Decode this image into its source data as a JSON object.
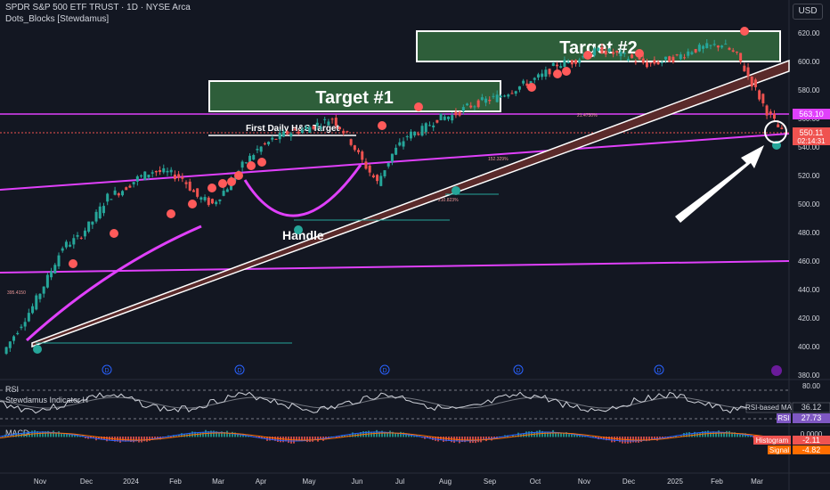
{
  "header": {
    "symbol_line": "SPDR S&P 500 ETF TRUST · 1D · NYSE Arca",
    "indicator_line": "Dots_Blocks [Stewdamus]",
    "currency_button": "USD"
  },
  "chart_data": [
    {
      "type": "line",
      "pane": "price",
      "ylim": [
        375,
        630
      ],
      "y_ticks": [
        380,
        400,
        420,
        440,
        460,
        480,
        500,
        520,
        540,
        560,
        580,
        600,
        620
      ],
      "x_tick_labels": [
        "Nov",
        "Dec",
        "2024",
        "Feb",
        "Mar",
        "Apr",
        "May",
        "Jun",
        "Jul",
        "Aug",
        "Sep",
        "Oct",
        "Nov",
        "Dec",
        "2025",
        "Feb",
        "Mar"
      ],
      "series": [
        {
          "values": [
            395,
            412,
            428,
            448,
            470,
            476,
            488,
            505,
            510,
            518,
            523,
            522,
            518,
            505,
            500,
            512,
            527,
            538,
            545,
            550,
            552,
            556,
            560,
            548,
            530,
            515,
            535,
            548,
            552,
            560,
            562,
            568,
            572,
            575,
            580,
            585,
            590,
            598,
            600,
            605,
            608,
            605,
            602,
            598,
            600,
            603,
            608,
            610,
            612,
            604,
            585,
            565,
            550
          ]
        }
      ],
      "price_labels": {
        "level": "563.10",
        "last": "550.11",
        "countdown": "02:14:31"
      },
      "annotations": [
        "Target #1",
        "Target #2",
        "First Daily H&S Target",
        "Handle"
      ],
      "small_labels": [
        "395.4150",
        "21.4750%",
        "152.329%",
        "210.823%"
      ],
      "dividend_marker": "D"
    },
    {
      "type": "line",
      "pane": "rsi",
      "title": "RSI",
      "subtitle": "Stewdamus Indicator H",
      "ylim": [
        20,
        85
      ],
      "y_ticks": [
        "80.00"
      ],
      "series": [
        {
          "name": "RSI-based MA",
          "value": "36.12"
        },
        {
          "name": "RSI",
          "value": "27.73"
        }
      ]
    },
    {
      "type": "bar",
      "pane": "macd",
      "title": "MACD",
      "y_ticks": [
        "0.0000"
      ],
      "series": [
        {
          "name": "Histogram",
          "value": "-2.11"
        },
        {
          "name": "Signal",
          "value": "-4.82"
        }
      ]
    }
  ],
  "colors": {
    "background": "#131722",
    "up": "#26a69a",
    "down": "#ef5350",
    "trendline": "#e040fb",
    "target_fill": "#2e5e3a",
    "red_dot": "#ff5a5a",
    "green_dot": "#26a69a"
  }
}
